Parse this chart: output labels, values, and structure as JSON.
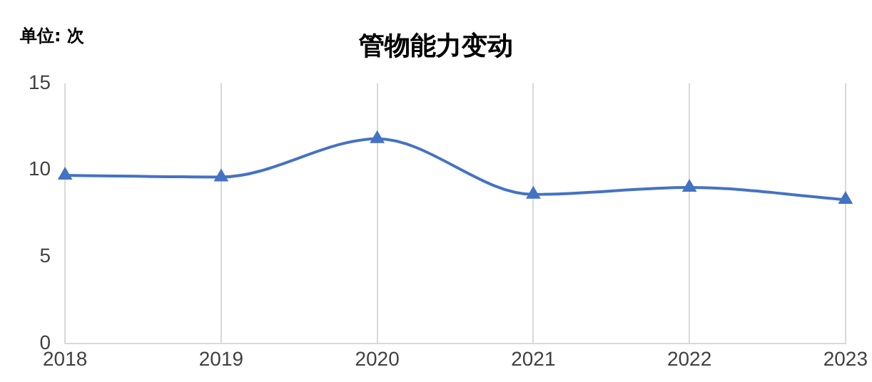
{
  "chart_data": {
    "type": "line",
    "title": "管物能力变动",
    "annotations": [
      "单位: 次"
    ],
    "categories": [
      "2018",
      "2019",
      "2020",
      "2021",
      "2022",
      "2023"
    ],
    "series": [
      {
        "color": "#4472c4",
        "values": [
          9.7,
          9.6,
          11.8,
          8.6,
          9.0,
          8.3
        ]
      }
    ],
    "ylim": [
      0,
      15
    ],
    "yticks": [
      0,
      5,
      10,
      15
    ],
    "grid": "x",
    "legend": false,
    "marker": "triangle",
    "line_style": "solid"
  }
}
